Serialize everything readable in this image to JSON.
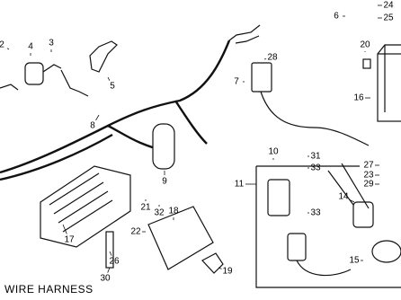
{
  "title": "WIRE HARNESS",
  "callouts": [
    {
      "label": "24"
    },
    {
      "label": "6"
    },
    {
      "label": "25"
    },
    {
      "label": "20"
    },
    {
      "label": "4"
    },
    {
      "label": "3"
    },
    {
      "label": "28"
    },
    {
      "label": "7"
    },
    {
      "label": "5"
    },
    {
      "label": "16"
    },
    {
      "label": "8"
    },
    {
      "label": "9"
    },
    {
      "label": "10"
    },
    {
      "label": "31"
    },
    {
      "label": "33"
    },
    {
      "label": "27"
    },
    {
      "label": "23"
    },
    {
      "label": "29"
    },
    {
      "label": "11"
    },
    {
      "label": "14"
    },
    {
      "label": "33"
    },
    {
      "label": "21"
    },
    {
      "label": "32"
    },
    {
      "label": "18"
    },
    {
      "label": "22"
    },
    {
      "label": "17"
    },
    {
      "label": "26"
    },
    {
      "label": "30"
    },
    {
      "label": "19"
    },
    {
      "label": "15"
    },
    {
      "label": "2"
    }
  ]
}
